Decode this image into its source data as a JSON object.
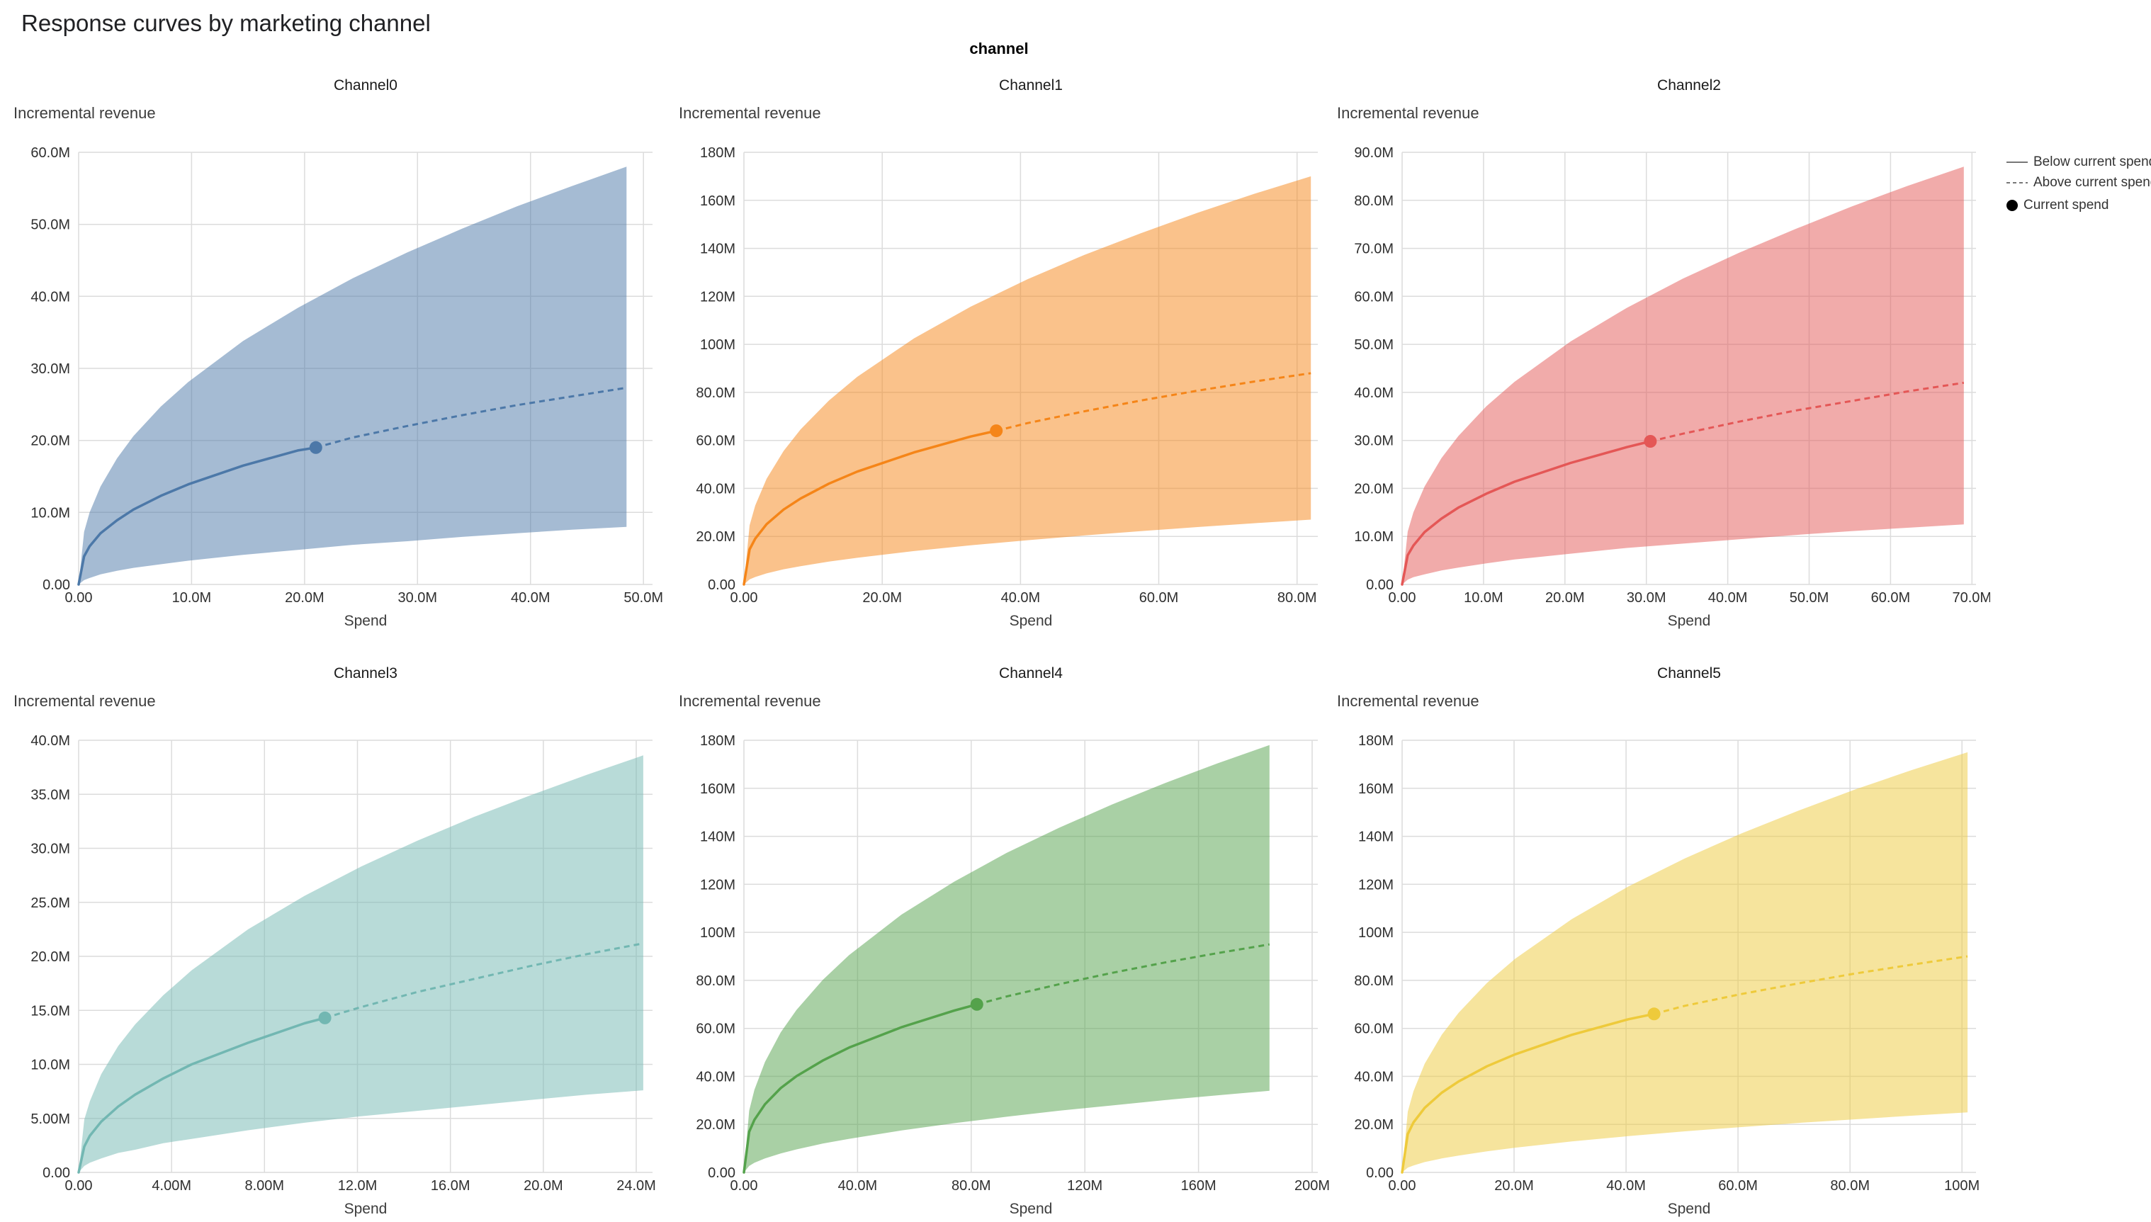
{
  "page": {
    "title": "Response curves by marketing channel"
  },
  "chart_data": {
    "type": "line",
    "title": "Response curves by marketing channel",
    "facet_field": "channel",
    "x_label": "Spend",
    "y_label": "Incremental revenue",
    "value_units": "millions (M)",
    "grid": true,
    "legend": {
      "below": "Below current spend",
      "above": "Above current spend",
      "current": "Current spend",
      "position": "top-right"
    },
    "spend_fractions": [
      0,
      0.01,
      0.02,
      0.04,
      0.07,
      0.1,
      0.15,
      0.2,
      0.3,
      0.4,
      0.5,
      0.6,
      0.7,
      0.8,
      0.9,
      1.0
    ],
    "channels": [
      {
        "name": "Channel0",
        "color": "#4c78a8",
        "x_axis_max": 50.8,
        "y_axis_max": 60,
        "x_tick_values": [
          0,
          10,
          20,
          30,
          40,
          50
        ],
        "x_tick_labels": [
          "0.00",
          "10.0M",
          "20.0M",
          "30.0M",
          "40.0M",
          "50.0M"
        ],
        "y_tick_values": [
          0,
          10,
          20,
          30,
          40,
          50,
          60
        ],
        "y_tick_labels": [
          "0.00",
          "10.0M",
          "20.0M",
          "30.0M",
          "40.0M",
          "50.0M",
          "60.0M"
        ],
        "max_spend": 48.5,
        "current_spend": {
          "spend": 21,
          "revenue": 19
        },
        "mean": [
          0,
          3.9,
          5.3,
          7.1,
          8.9,
          10.4,
          12.3,
          13.9,
          16.5,
          18.6,
          20.4,
          22.0,
          23.5,
          24.9,
          26.1,
          27.3
        ],
        "upper": [
          0,
          7.3,
          10.0,
          13.6,
          17.5,
          20.6,
          24.7,
          28.1,
          33.8,
          38.4,
          42.5,
          46.1,
          49.4,
          52.5,
          55.3,
          58.0
        ],
        "lower": [
          0,
          0.6,
          0.9,
          1.4,
          1.9,
          2.3,
          2.8,
          3.3,
          4.1,
          4.8,
          5.5,
          6.0,
          6.6,
          7.1,
          7.6,
          8.0
        ]
      },
      {
        "name": "Channel1",
        "color": "#f58518",
        "x_axis_max": 83,
        "y_axis_max": 180,
        "x_tick_values": [
          0,
          20,
          40,
          60,
          80
        ],
        "x_tick_labels": [
          "0.00",
          "20.0M",
          "40.0M",
          "60.0M",
          "80.0M"
        ],
        "y_tick_values": [
          0,
          20,
          40,
          60,
          80,
          100,
          120,
          140,
          160,
          180
        ],
        "y_tick_labels": [
          "0.00",
          "20.0M",
          "40.0M",
          "60.0M",
          "80.0M",
          "100M",
          "120M",
          "140M",
          "160M",
          "180M"
        ],
        "max_spend": 82,
        "current_spend": {
          "spend": 36.5,
          "revenue": 64
        },
        "mean": [
          0,
          14.6,
          19.1,
          25.1,
          31.2,
          35.8,
          42.0,
          47.0,
          55.0,
          61.6,
          67.2,
          72.1,
          76.6,
          80.7,
          84.5,
          88.0
        ],
        "upper": [
          0,
          24.6,
          32.9,
          44.0,
          55.6,
          64.6,
          76.6,
          86.5,
          102.5,
          115.7,
          127.1,
          137.2,
          146.3,
          154.8,
          162.7,
          170.0
        ],
        "lower": [
          0,
          2.1,
          3.1,
          4.6,
          6.3,
          7.6,
          9.5,
          11.1,
          13.9,
          16.3,
          18.4,
          20.4,
          22.2,
          23.9,
          25.5,
          27.0
        ]
      },
      {
        "name": "Channel2",
        "color": "#e45756",
        "x_axis_max": 70.5,
        "y_axis_max": 90,
        "x_tick_values": [
          0,
          10,
          20,
          30,
          40,
          50,
          60,
          70
        ],
        "x_tick_labels": [
          "0.00",
          "10.0M",
          "20.0M",
          "30.0M",
          "40.0M",
          "50.0M",
          "60.0M",
          "70.0M"
        ],
        "y_tick_values": [
          0,
          10,
          20,
          30,
          40,
          50,
          60,
          70,
          80,
          90
        ],
        "y_tick_labels": [
          "0.00",
          "10.0M",
          "20.0M",
          "30.0M",
          "40.0M",
          "50.0M",
          "60.0M",
          "70.0M",
          "80.0M",
          "90.0M"
        ],
        "max_spend": 69,
        "current_spend": {
          "spend": 30.5,
          "revenue": 29.8
        },
        "mean": [
          0,
          6.1,
          8.1,
          10.9,
          13.7,
          16.0,
          18.9,
          21.4,
          25.3,
          28.6,
          31.4,
          33.9,
          36.2,
          38.2,
          40.2,
          42.0
        ],
        "upper": [
          0,
          11.0,
          15.0,
          20.4,
          26.3,
          30.9,
          37.1,
          42.2,
          50.6,
          57.6,
          63.7,
          69.1,
          74.0,
          78.7,
          83.0,
          87.0
        ],
        "lower": [
          0,
          1.0,
          1.5,
          2.1,
          2.9,
          3.5,
          4.4,
          5.2,
          6.4,
          7.6,
          8.5,
          9.4,
          10.3,
          11.1,
          11.8,
          12.5
        ]
      },
      {
        "name": "Channel3",
        "color": "#72b7b2",
        "x_axis_max": 24.7,
        "y_axis_max": 40,
        "x_tick_values": [
          0,
          4,
          8,
          12,
          16,
          20,
          24
        ],
        "x_tick_labels": [
          "0.00",
          "4.00M",
          "8.00M",
          "12.0M",
          "16.0M",
          "20.0M",
          "24.0M"
        ],
        "y_tick_values": [
          0,
          5,
          10,
          15,
          20,
          25,
          30,
          35,
          40
        ],
        "y_tick_labels": [
          "0.00",
          "5.00M",
          "10.0M",
          "15.0M",
          "20.0M",
          "25.0M",
          "30.0M",
          "35.0M",
          "40.0M"
        ],
        "max_spend": 24.3,
        "current_spend": {
          "spend": 10.6,
          "revenue": 14.3
        },
        "mean": [
          0,
          2.4,
          3.4,
          4.7,
          6.1,
          7.2,
          8.7,
          10.0,
          12.0,
          13.8,
          15.3,
          16.7,
          17.9,
          19.1,
          20.2,
          21.2
        ],
        "upper": [
          0,
          4.9,
          6.6,
          9.1,
          11.7,
          13.7,
          16.4,
          18.7,
          22.5,
          25.6,
          28.3,
          30.7,
          32.9,
          34.9,
          36.8,
          38.6
        ],
        "lower": [
          0,
          0.6,
          0.9,
          1.3,
          1.8,
          2.1,
          2.7,
          3.1,
          3.9,
          4.6,
          5.2,
          5.7,
          6.2,
          6.7,
          7.2,
          7.6
        ]
      },
      {
        "name": "Channel4",
        "color": "#54a24b",
        "x_axis_max": 202,
        "y_axis_max": 180,
        "x_tick_values": [
          0,
          40,
          80,
          120,
          160,
          200
        ],
        "x_tick_labels": [
          "0.00",
          "40.0M",
          "80.0M",
          "120M",
          "160M",
          "200M"
        ],
        "y_tick_values": [
          0,
          20,
          40,
          60,
          80,
          100,
          120,
          140,
          160,
          180
        ],
        "y_tick_labels": [
          "0.00",
          "20.0M",
          "40.0M",
          "60.0M",
          "80.0M",
          "100M",
          "120M",
          "140M",
          "160M",
          "180M"
        ],
        "max_spend": 185,
        "current_spend": {
          "spend": 82,
          "revenue": 70
        },
        "mean": [
          0,
          16.9,
          21.9,
          28.4,
          35.1,
          40.1,
          46.6,
          52.0,
          60.5,
          67.4,
          73.3,
          78.4,
          83.1,
          87.4,
          91.3,
          95.0
        ],
        "upper": [
          0,
          25.7,
          34.4,
          46.0,
          58.3,
          67.7,
          80.2,
          90.5,
          107.4,
          121.1,
          133.1,
          143.6,
          153.2,
          162.1,
          170.3,
          178.0
        ],
        "lower": [
          0,
          2.7,
          4.0,
          5.8,
          7.9,
          9.6,
          12.0,
          14.0,
          17.5,
          20.5,
          23.2,
          25.7,
          27.9,
          30.1,
          32.1,
          34.0
        ]
      },
      {
        "name": "Channel5",
        "color": "#eeca3b",
        "x_axis_max": 102.5,
        "y_axis_max": 180,
        "x_tick_values": [
          0,
          20,
          40,
          60,
          80,
          100
        ],
        "x_tick_labels": [
          "0.00",
          "20.0M",
          "40.0M",
          "60.0M",
          "80.0M",
          "100M"
        ],
        "y_tick_values": [
          0,
          20,
          40,
          60,
          80,
          100,
          120,
          140,
          160,
          180
        ],
        "y_tick_labels": [
          "0.00",
          "20.0M",
          "40.0M",
          "60.0M",
          "80.0M",
          "100M",
          "120M",
          "140M",
          "160M",
          "180M"
        ],
        "max_spend": 101,
        "current_spend": {
          "spend": 45,
          "revenue": 66
        },
        "mean": [
          0,
          16.0,
          20.8,
          26.9,
          33.2,
          37.9,
          44.2,
          49.2,
          57.3,
          63.8,
          69.4,
          74.3,
          78.7,
          82.8,
          86.5,
          90.0
        ],
        "upper": [
          0,
          25.3,
          33.8,
          45.3,
          57.3,
          66.5,
          78.9,
          89.0,
          105.5,
          119.1,
          130.8,
          141.2,
          150.6,
          159.4,
          167.5,
          175.0
        ],
        "lower": [
          0,
          2.0,
          2.9,
          4.3,
          5.8,
          7.0,
          8.8,
          10.3,
          12.9,
          15.1,
          17.1,
          18.9,
          20.6,
          22.1,
          23.6,
          25.0
        ]
      }
    ]
  }
}
